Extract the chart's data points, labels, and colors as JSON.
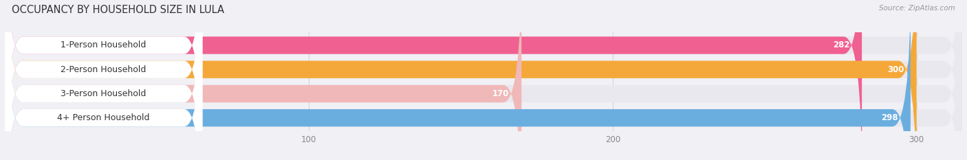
{
  "title": "OCCUPANCY BY HOUSEHOLD SIZE IN LULA",
  "source": "Source: ZipAtlas.com",
  "categories": [
    "1-Person Household",
    "2-Person Household",
    "3-Person Household",
    "4+ Person Household"
  ],
  "values": [
    282,
    300,
    170,
    298
  ],
  "bar_colors": [
    "#f06090",
    "#f5a83a",
    "#f0b8b8",
    "#6aaee0"
  ],
  "xlim": [
    0,
    315
  ],
  "xticks": [
    100,
    200,
    300
  ],
  "title_fontsize": 10.5,
  "label_fontsize": 9,
  "value_fontsize": 8.5,
  "bar_height": 0.72,
  "background_color": "#f0f0f5",
  "bar_bg_color": "#e8e8ee",
  "label_bg_color": "#ffffff"
}
